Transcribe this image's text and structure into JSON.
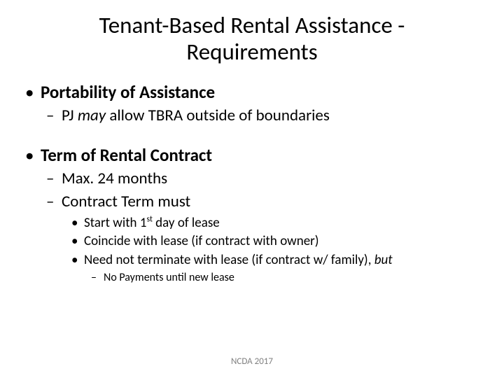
{
  "title_line1": "Tenant-Based Rental Assistance -",
  "title_line2": "Requirements",
  "b1": "Portability of Assistance",
  "b1_s1_pre": "PJ ",
  "b1_s1_em": "may",
  "b1_s1_post": " allow TBRA outside of boundaries",
  "b2": "Term of Rental Contract",
  "b2_s1": "Max. 24 months",
  "b2_s2": "Contract Term must",
  "b2_s2_a_pre": "Start with 1",
  "b2_s2_a_sup": "st",
  "b2_s2_a_post": " day of lease",
  "b2_s2_b": "Coincide with lease (if contract with owner)",
  "b2_s2_c_pre": "Need not terminate with lease (if contract w/ family), ",
  "b2_s2_c_em": "but",
  "b2_s2_c_1": "No Payments until new lease",
  "footer": "NCDA 2017",
  "colors": {
    "text": "#000000",
    "background": "#ffffff",
    "footer": "#808080"
  }
}
